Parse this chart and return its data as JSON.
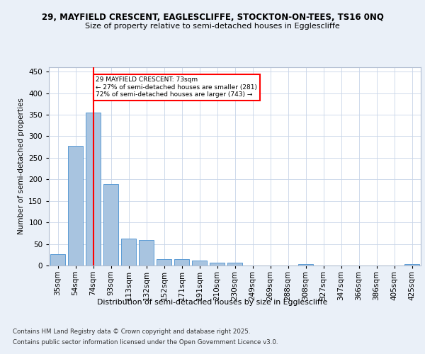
{
  "title1": "29, MAYFIELD CRESCENT, EAGLESCLIFFE, STOCKTON-ON-TEES, TS16 0NQ",
  "title2": "Size of property relative to semi-detached houses in Egglescliffe",
  "xlabel": "Distribution of semi-detached houses by size in Egglescliffe",
  "ylabel": "Number of semi-detached properties",
  "categories": [
    "35sqm",
    "54sqm",
    "74sqm",
    "93sqm",
    "113sqm",
    "132sqm",
    "152sqm",
    "171sqm",
    "191sqm",
    "210sqm",
    "230sqm",
    "249sqm",
    "269sqm",
    "288sqm",
    "308sqm",
    "327sqm",
    "347sqm",
    "366sqm",
    "386sqm",
    "405sqm",
    "425sqm"
  ],
  "values": [
    27,
    278,
    355,
    189,
    63,
    59,
    14,
    14,
    11,
    6,
    6,
    0,
    0,
    0,
    3,
    0,
    0,
    0,
    0,
    0,
    4
  ],
  "bar_color": "#a8c4e0",
  "bar_edge_color": "#5b9bd5",
  "property_line_x": 2,
  "annotation_text_line1": "29 MAYFIELD CRESCENT: 73sqm",
  "annotation_text_line2": "← 27% of semi-detached houses are smaller (281)",
  "annotation_text_line3": "72% of semi-detached houses are larger (743) →",
  "ylim": [
    0,
    460
  ],
  "yticks": [
    0,
    50,
    100,
    150,
    200,
    250,
    300,
    350,
    400,
    450
  ],
  "footer1": "Contains HM Land Registry data © Crown copyright and database right 2025.",
  "footer2": "Contains public sector information licensed under the Open Government Licence v3.0.",
  "bg_color": "#eaf0f8",
  "plot_bg_color": "#ffffff"
}
